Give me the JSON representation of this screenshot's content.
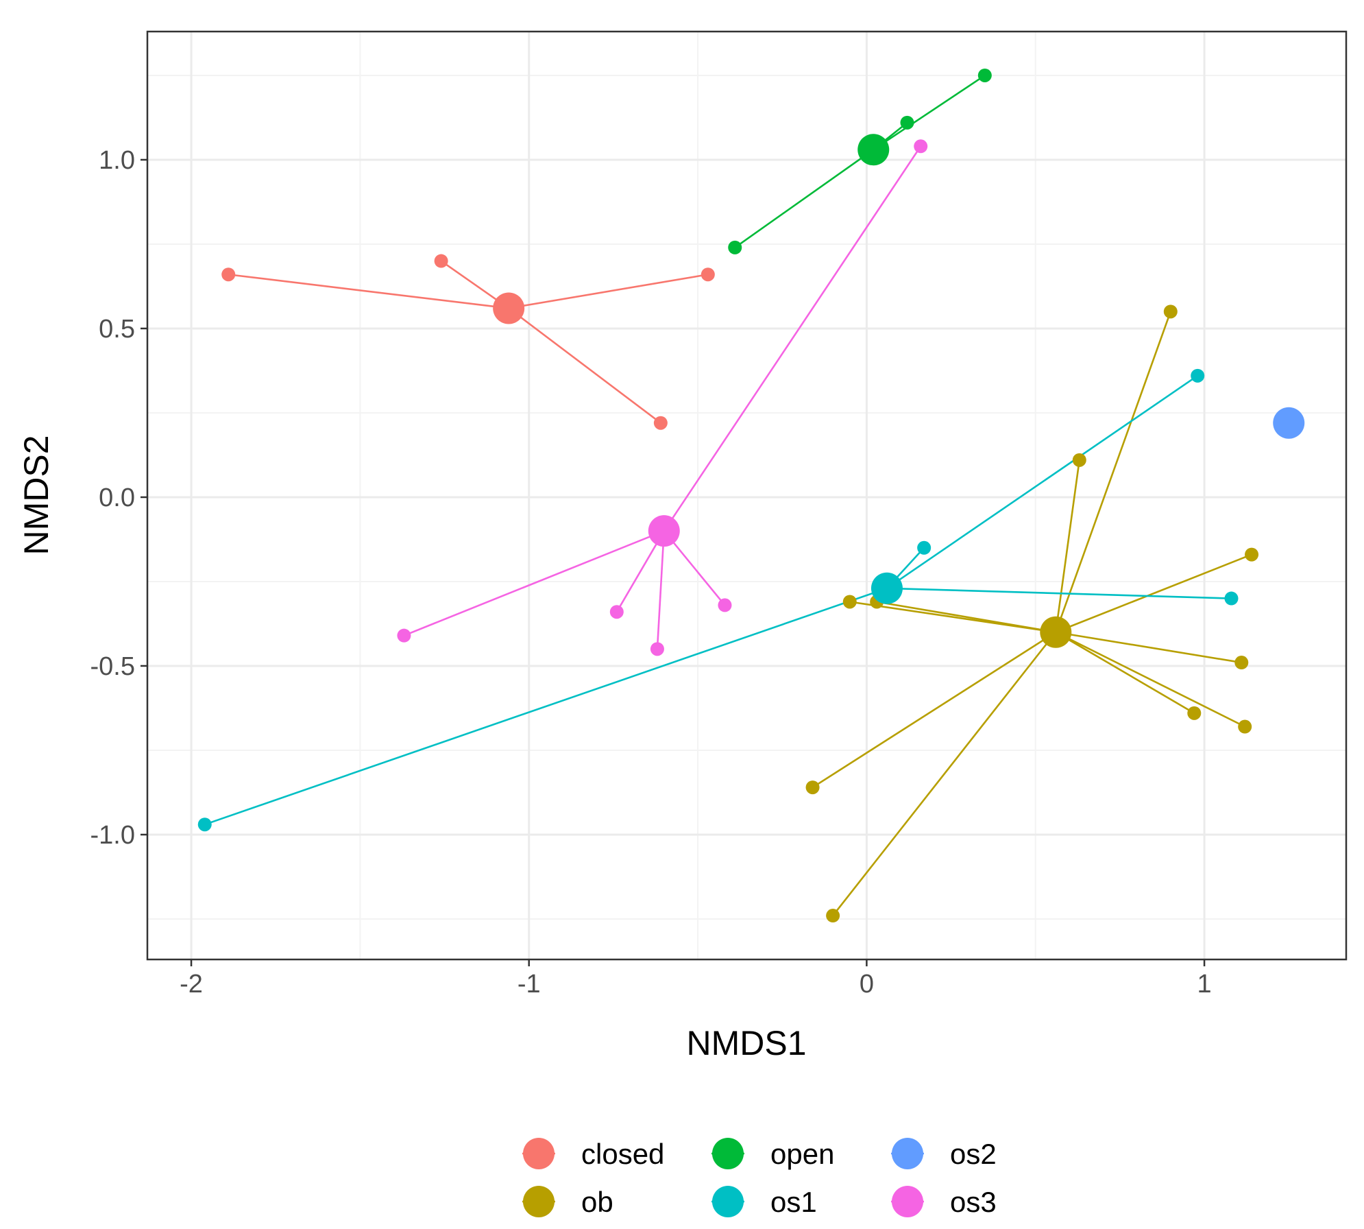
{
  "chart_data": {
    "type": "scatter",
    "title": "",
    "xlabel": "NMDS1",
    "ylabel": "NMDS2",
    "xlim": [
      -2.13,
      1.42
    ],
    "ylim": [
      -1.37,
      1.38
    ],
    "x_ticks": [
      -2,
      -1,
      0,
      1
    ],
    "x_tick_labels": [
      "-2",
      "-1",
      "0",
      "1"
    ],
    "y_ticks": [
      -1.0,
      -0.5,
      0.0,
      0.5,
      1.0
    ],
    "y_tick_labels": [
      "-1.0",
      "-0.5",
      "0.0",
      "0.5",
      "1.0"
    ],
    "grid": true,
    "legend_position": "bottom",
    "legend_order": [
      "closed",
      "open",
      "os2",
      "ob",
      "os1",
      "os3"
    ],
    "series": [
      {
        "name": "closed",
        "color": "#F8766D",
        "centroid": [
          -1.06,
          0.56
        ],
        "points": [
          [
            -1.89,
            0.66
          ],
          [
            -1.26,
            0.7
          ],
          [
            -0.47,
            0.66
          ],
          [
            -0.61,
            0.22
          ]
        ]
      },
      {
        "name": "ob",
        "color": "#B79F00",
        "centroid": [
          0.56,
          -0.4
        ],
        "points": [
          [
            0.9,
            0.55
          ],
          [
            0.63,
            0.11
          ],
          [
            1.14,
            -0.17
          ],
          [
            -0.05,
            -0.31
          ],
          [
            0.03,
            -0.31
          ],
          [
            1.11,
            -0.49
          ],
          [
            0.97,
            -0.64
          ],
          [
            1.12,
            -0.68
          ],
          [
            -0.16,
            -0.86
          ],
          [
            -0.1,
            -1.24
          ]
        ]
      },
      {
        "name": "open",
        "color": "#00BA38",
        "centroid": [
          0.02,
          1.03
        ],
        "points": [
          [
            0.35,
            1.25
          ],
          [
            0.12,
            1.11
          ],
          [
            -0.39,
            0.74
          ]
        ]
      },
      {
        "name": "os1",
        "color": "#00BFC4",
        "centroid": [
          0.06,
          -0.27
        ],
        "points": [
          [
            0.98,
            0.36
          ],
          [
            0.17,
            -0.15
          ],
          [
            1.08,
            -0.3
          ],
          [
            -1.96,
            -0.97
          ]
        ]
      },
      {
        "name": "os2",
        "color": "#619CFF",
        "centroid": [
          1.25,
          0.22
        ],
        "points": []
      },
      {
        "name": "os3",
        "color": "#F564E3",
        "centroid": [
          -0.6,
          -0.1
        ],
        "points": [
          [
            0.16,
            1.04
          ],
          [
            -1.37,
            -0.41
          ],
          [
            -0.74,
            -0.34
          ],
          [
            -0.62,
            -0.45
          ],
          [
            -0.42,
            -0.32
          ]
        ]
      }
    ]
  }
}
